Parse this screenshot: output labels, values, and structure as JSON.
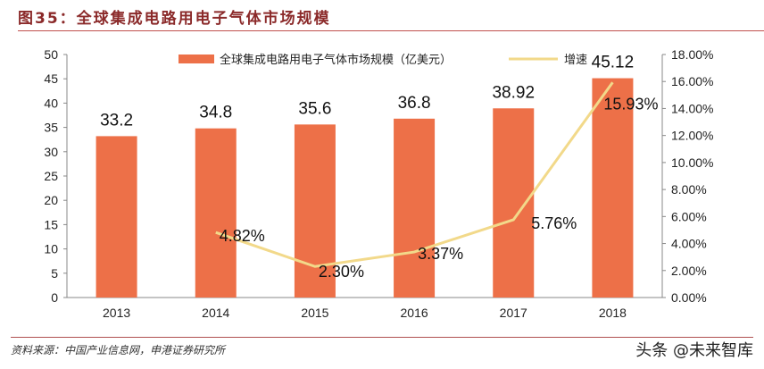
{
  "title": "图35：全球集成电路用电子气体市场规模",
  "source": "资料来源：中国产业信息网，申港证券研究所",
  "watermark": "头条 @未来智库",
  "chart_data": {
    "type": "bar+line",
    "categories": [
      "2013",
      "2014",
      "2015",
      "2016",
      "2017",
      "2018"
    ],
    "series": [
      {
        "name": "全球集成电路用电子气体市场规模（亿美元）",
        "type": "bar",
        "axis": "left",
        "color": "#ed7048",
        "values": [
          33.2,
          34.8,
          35.6,
          36.8,
          38.92,
          45.12
        ],
        "labels": [
          "33.2",
          "34.8",
          "35.6",
          "36.8",
          "38.92",
          "45.12"
        ]
      },
      {
        "name": "增速",
        "type": "line",
        "axis": "right",
        "color": "#f2d98a",
        "values": [
          null,
          4.82,
          2.3,
          3.37,
          5.76,
          15.93
        ],
        "labels": [
          "",
          "4.82%",
          "2.30%",
          "3.37%",
          "5.76%",
          "15.93%"
        ]
      }
    ],
    "left_axis": {
      "ylim": [
        0,
        50
      ],
      "ticks": [
        "0",
        "5",
        "10",
        "15",
        "20",
        "25",
        "30",
        "35",
        "40",
        "45",
        "50"
      ]
    },
    "right_axis": {
      "ylim": [
        0,
        18
      ],
      "ticks": [
        "0.00%",
        "2.00%",
        "4.00%",
        "6.00%",
        "8.00%",
        "10.00%",
        "12.00%",
        "14.00%",
        "16.00%",
        "18.00%"
      ]
    },
    "grid": false,
    "legend": "top"
  }
}
